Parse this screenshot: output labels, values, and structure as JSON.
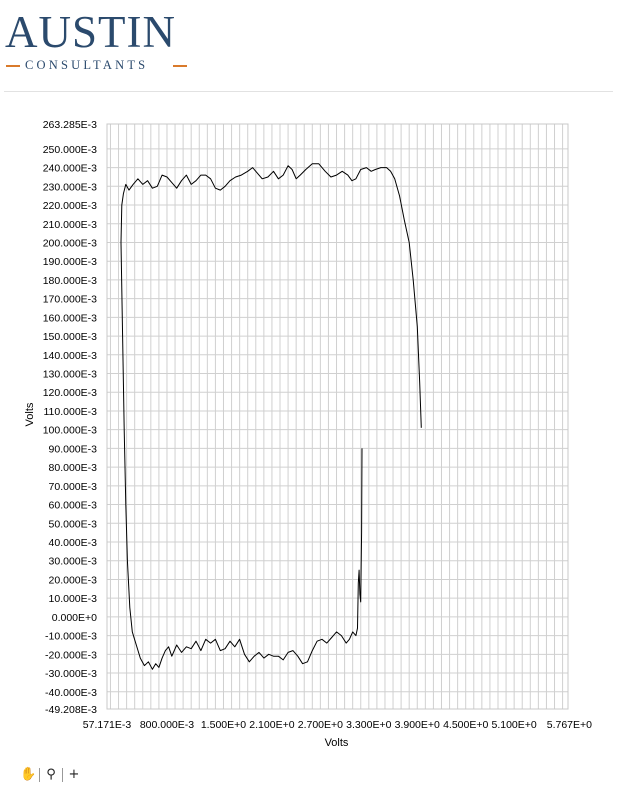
{
  "logo": {
    "title": "AUSTIN",
    "subtitle": "CONSULTANTS"
  },
  "toolbar": {
    "pan_icon": "hand-pan-icon",
    "zoom_icon": "zoom-icon",
    "crosshair_icon": "crosshair-icon"
  },
  "chart_data": {
    "type": "line",
    "xlabel": "Volts",
    "ylabel": "Volts",
    "xlim": [
      0.057171,
      5.767
    ],
    "ylim": [
      -0.049208,
      0.263285
    ],
    "grid": true,
    "x_ticks": [
      {
        "value": 0.057171,
        "label": "57.171E-3"
      },
      {
        "value": 0.8,
        "label": "800.000E-3"
      },
      {
        "value": 1.5,
        "label": "1.500E+0"
      },
      {
        "value": 2.1,
        "label": "2.100E+0"
      },
      {
        "value": 2.7,
        "label": "2.700E+0"
      },
      {
        "value": 3.3,
        "label": "3.300E+0"
      },
      {
        "value": 3.9,
        "label": "3.900E+0"
      },
      {
        "value": 4.5,
        "label": "4.500E+0"
      },
      {
        "value": 5.1,
        "label": "5.100E+0"
      },
      {
        "value": 5.767,
        "label": "5.767E+0"
      }
    ],
    "y_ticks": [
      {
        "value": 0.263285,
        "label": "263.285E-3"
      },
      {
        "value": 0.25,
        "label": "250.000E-3"
      },
      {
        "value": 0.24,
        "label": "240.000E-3"
      },
      {
        "value": 0.23,
        "label": "230.000E-3"
      },
      {
        "value": 0.22,
        "label": "220.000E-3"
      },
      {
        "value": 0.21,
        "label": "210.000E-3"
      },
      {
        "value": 0.2,
        "label": "200.000E-3"
      },
      {
        "value": 0.19,
        "label": "190.000E-3"
      },
      {
        "value": 0.18,
        "label": "180.000E-3"
      },
      {
        "value": 0.17,
        "label": "170.000E-3"
      },
      {
        "value": 0.16,
        "label": "160.000E-3"
      },
      {
        "value": 0.15,
        "label": "150.000E-3"
      },
      {
        "value": 0.14,
        "label": "140.000E-3"
      },
      {
        "value": 0.13,
        "label": "130.000E-3"
      },
      {
        "value": 0.12,
        "label": "120.000E-3"
      },
      {
        "value": 0.11,
        "label": "110.000E-3"
      },
      {
        "value": 0.1,
        "label": "100.000E-3"
      },
      {
        "value": 0.09,
        "label": "90.000E-3"
      },
      {
        "value": 0.08,
        "label": "80.000E-3"
      },
      {
        "value": 0.07,
        "label": "70.000E-3"
      },
      {
        "value": 0.06,
        "label": "60.000E-3"
      },
      {
        "value": 0.05,
        "label": "50.000E-3"
      },
      {
        "value": 0.04,
        "label": "40.000E-3"
      },
      {
        "value": 0.03,
        "label": "30.000E-3"
      },
      {
        "value": 0.02,
        "label": "20.000E-3"
      },
      {
        "value": 0.01,
        "label": "10.000E-3"
      },
      {
        "value": 0.0,
        "label": "0.000E+0"
      },
      {
        "value": -0.01,
        "label": "-10.000E-3"
      },
      {
        "value": -0.02,
        "label": "-20.000E-3"
      },
      {
        "value": -0.03,
        "label": "-30.000E-3"
      },
      {
        "value": -0.04,
        "label": "-40.000E-3"
      },
      {
        "value": -0.049208,
        "label": "-49.208E-3"
      }
    ],
    "series": [
      {
        "color": "#000000",
        "points": [
          [
            3.95,
            0.101
          ],
          [
            3.93,
            0.125
          ],
          [
            3.9,
            0.155
          ],
          [
            3.85,
            0.18
          ],
          [
            3.8,
            0.2
          ],
          [
            3.74,
            0.212
          ],
          [
            3.68,
            0.225
          ],
          [
            3.62,
            0.234
          ],
          [
            3.57,
            0.238
          ],
          [
            3.52,
            0.24
          ],
          [
            3.45,
            0.24
          ],
          [
            3.38,
            0.239
          ],
          [
            3.33,
            0.238
          ],
          [
            3.27,
            0.24
          ],
          [
            3.2,
            0.239
          ],
          [
            3.14,
            0.234
          ],
          [
            3.09,
            0.233
          ],
          [
            3.04,
            0.236
          ],
          [
            2.97,
            0.238
          ],
          [
            2.9,
            0.236
          ],
          [
            2.83,
            0.235
          ],
          [
            2.76,
            0.238
          ],
          [
            2.68,
            0.242
          ],
          [
            2.6,
            0.242
          ],
          [
            2.52,
            0.239
          ],
          [
            2.45,
            0.236
          ],
          [
            2.4,
            0.234
          ],
          [
            2.35,
            0.239
          ],
          [
            2.3,
            0.241
          ],
          [
            2.24,
            0.236
          ],
          [
            2.18,
            0.234
          ],
          [
            2.12,
            0.238
          ],
          [
            2.05,
            0.235
          ],
          [
            1.98,
            0.234
          ],
          [
            1.92,
            0.237
          ],
          [
            1.86,
            0.24
          ],
          [
            1.8,
            0.238
          ],
          [
            1.72,
            0.236
          ],
          [
            1.65,
            0.235
          ],
          [
            1.58,
            0.233
          ],
          [
            1.52,
            0.23
          ],
          [
            1.46,
            0.228
          ],
          [
            1.4,
            0.229
          ],
          [
            1.34,
            0.234
          ],
          [
            1.28,
            0.236
          ],
          [
            1.22,
            0.236
          ],
          [
            1.16,
            0.233
          ],
          [
            1.1,
            0.231
          ],
          [
            1.04,
            0.236
          ],
          [
            0.98,
            0.233
          ],
          [
            0.92,
            0.229
          ],
          [
            0.86,
            0.232
          ],
          [
            0.8,
            0.235
          ],
          [
            0.74,
            0.236
          ],
          [
            0.68,
            0.23
          ],
          [
            0.62,
            0.229
          ],
          [
            0.56,
            0.233
          ],
          [
            0.5,
            0.231
          ],
          [
            0.44,
            0.234
          ],
          [
            0.38,
            0.231
          ],
          [
            0.33,
            0.228
          ],
          [
            0.29,
            0.231
          ],
          [
            0.26,
            0.226
          ],
          [
            0.24,
            0.22
          ],
          [
            0.23,
            0.2
          ],
          [
            0.25,
            0.15
          ],
          [
            0.27,
            0.1
          ],
          [
            0.29,
            0.06
          ],
          [
            0.31,
            0.03
          ],
          [
            0.34,
            0.005
          ],
          [
            0.37,
            -0.008
          ],
          [
            0.42,
            -0.015
          ],
          [
            0.47,
            -0.022
          ],
          [
            0.52,
            -0.026
          ],
          [
            0.57,
            -0.024
          ],
          [
            0.62,
            -0.028
          ],
          [
            0.66,
            -0.025
          ],
          [
            0.7,
            -0.027
          ],
          [
            0.74,
            -0.022
          ],
          [
            0.78,
            -0.018
          ],
          [
            0.82,
            -0.016
          ],
          [
            0.86,
            -0.021
          ],
          [
            0.92,
            -0.015
          ],
          [
            0.98,
            -0.019
          ],
          [
            1.04,
            -0.016
          ],
          [
            1.1,
            -0.017
          ],
          [
            1.16,
            -0.013
          ],
          [
            1.22,
            -0.018
          ],
          [
            1.28,
            -0.012
          ],
          [
            1.34,
            -0.014
          ],
          [
            1.4,
            -0.012
          ],
          [
            1.46,
            -0.018
          ],
          [
            1.52,
            -0.017
          ],
          [
            1.58,
            -0.013
          ],
          [
            1.64,
            -0.016
          ],
          [
            1.7,
            -0.012
          ],
          [
            1.76,
            -0.02
          ],
          [
            1.82,
            -0.024
          ],
          [
            1.88,
            -0.021
          ],
          [
            1.94,
            -0.019
          ],
          [
            2.0,
            -0.022
          ],
          [
            2.06,
            -0.02
          ],
          [
            2.12,
            -0.021
          ],
          [
            2.18,
            -0.021
          ],
          [
            2.24,
            -0.023
          ],
          [
            2.3,
            -0.019
          ],
          [
            2.36,
            -0.018
          ],
          [
            2.42,
            -0.021
          ],
          [
            2.48,
            -0.025
          ],
          [
            2.54,
            -0.024
          ],
          [
            2.6,
            -0.018
          ],
          [
            2.66,
            -0.013
          ],
          [
            2.72,
            -0.012
          ],
          [
            2.78,
            -0.014
          ],
          [
            2.84,
            -0.011
          ],
          [
            2.9,
            -0.008
          ],
          [
            2.96,
            -0.01
          ],
          [
            3.02,
            -0.014
          ],
          [
            3.06,
            -0.012
          ],
          [
            3.1,
            -0.008
          ],
          [
            3.14,
            -0.01
          ],
          [
            3.16,
            -0.006
          ],
          [
            3.17,
            0.018
          ],
          [
            3.18,
            0.025
          ],
          [
            3.19,
            0.012
          ],
          [
            3.2,
            0.008
          ],
          [
            3.21,
            0.045
          ],
          [
            3.215,
            0.09
          ]
        ]
      }
    ]
  }
}
